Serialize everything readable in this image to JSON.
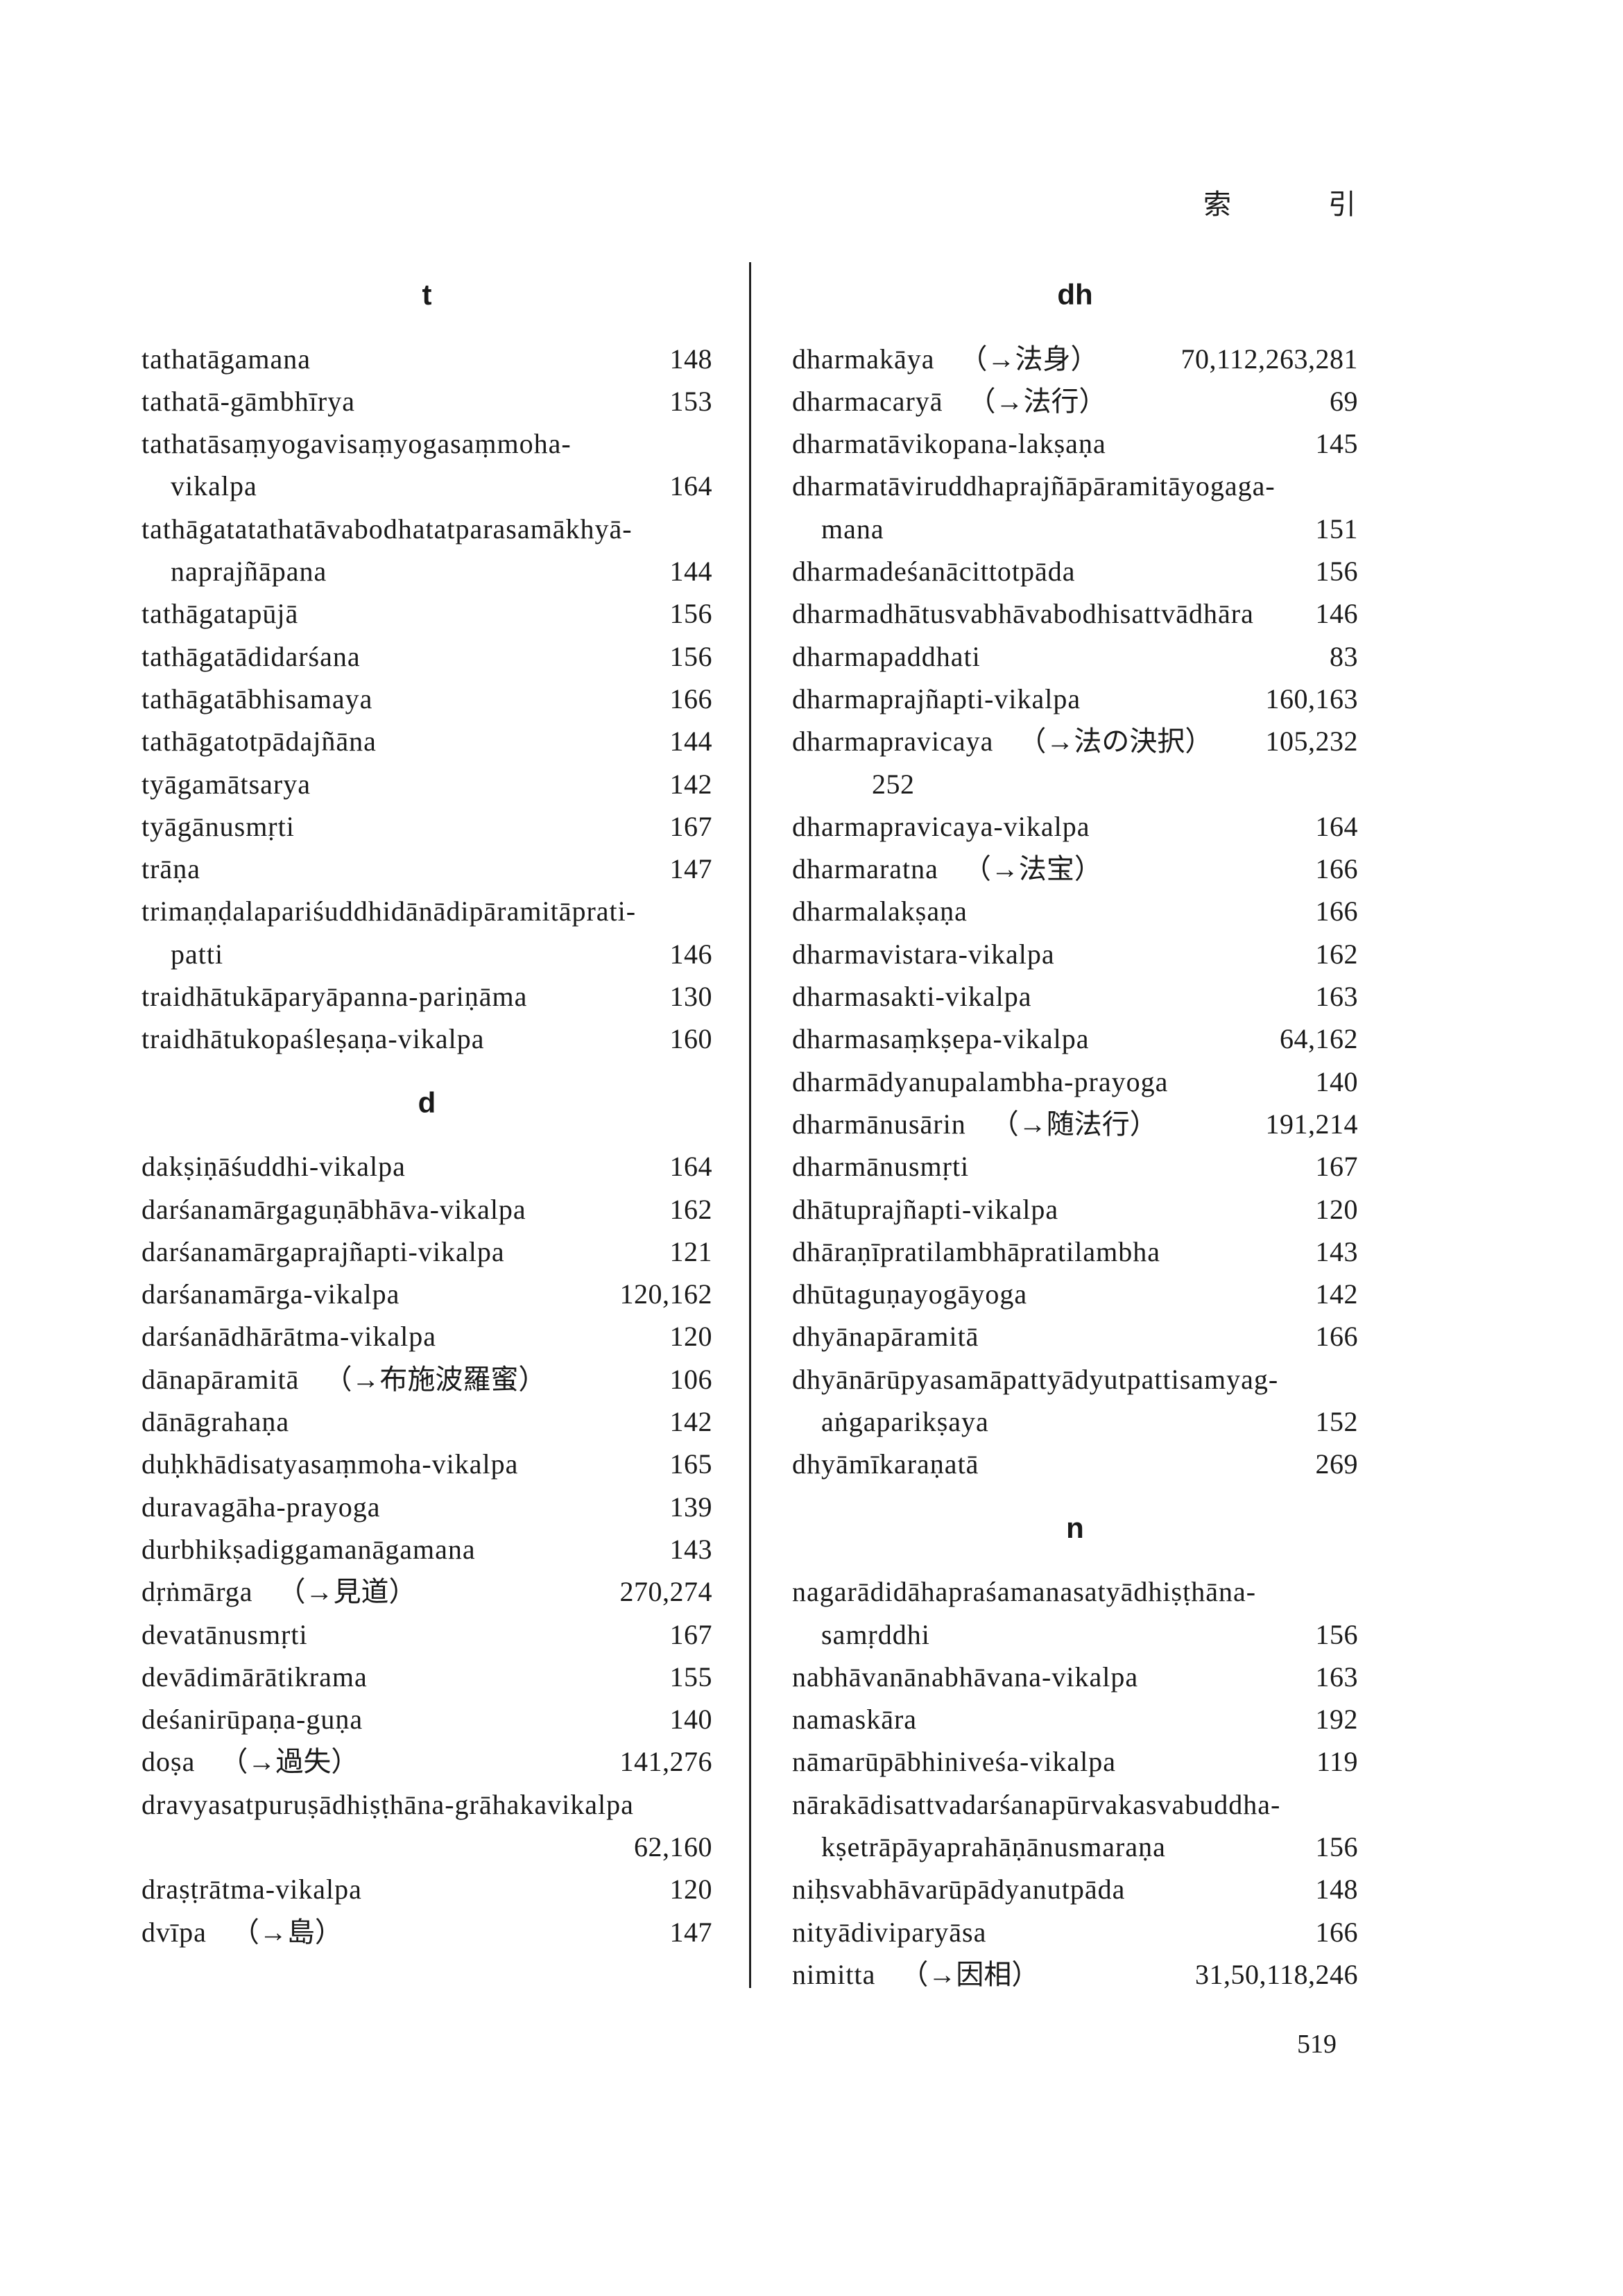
{
  "running_head": {
    "left": "索",
    "right": "引"
  },
  "folio": "519",
  "columns": [
    {
      "sections": [
        {
          "heading": "t",
          "rows": [
            {
              "term": "tathatāgamana",
              "pages": "148"
            },
            {
              "term": "tathatā-gāmbhīrya",
              "pages": "153"
            },
            {
              "term": "tathatāsaṃyogavisaṃyogasaṃmoha-",
              "pages": ""
            },
            {
              "term": "vikalpa",
              "pages": "164",
              "continuation": true
            },
            {
              "term": "tathāgatatathatāvabodhatatparasamākhyā-",
              "pages": ""
            },
            {
              "term": "naprajñāpana",
              "pages": "144",
              "continuation": true
            },
            {
              "term": "tathāgatapūjā",
              "pages": "156"
            },
            {
              "term": "tathāgatādidarśana",
              "pages": "156"
            },
            {
              "term": "tathāgatābhisamaya",
              "pages": "166"
            },
            {
              "term": "tathāgatotpādajñāna",
              "pages": "144"
            },
            {
              "term": "tyāgamātsarya",
              "pages": "142"
            },
            {
              "term": "tyāgānusmṛti",
              "pages": "167"
            },
            {
              "term": "trāṇa",
              "pages": "147"
            },
            {
              "term": "trimaṇḍalapariśuddhidānādipāramitāprati-",
              "pages": ""
            },
            {
              "term": "patti",
              "pages": "146",
              "continuation": true
            },
            {
              "term": "traidhātukāparyāpanna-pariṇāma",
              "pages": "130"
            },
            {
              "term": "traidhātukopaśleṣaṇa-vikalpa",
              "pages": "160"
            }
          ]
        },
        {
          "heading": "d",
          "rows": [
            {
              "term": "dakṣiṇāśuddhi-vikalpa",
              "pages": "164"
            },
            {
              "term": "darśanamārgaguṇābhāva-vikalpa",
              "pages": "162"
            },
            {
              "term": "darśanamārgaprajñapti-vikalpa",
              "pages": "121"
            },
            {
              "term": "darśanamārga-vikalpa",
              "pages": "120,162"
            },
            {
              "term": "darśanādhārātma-vikalpa",
              "pages": "120"
            },
            {
              "term": "dānapāramitā",
              "ref": "（→布施波羅蜜）",
              "pages": "106"
            },
            {
              "term": "dānāgrahaṇa",
              "pages": "142"
            },
            {
              "term": "duḥkhādisatyasaṃmoha-vikalpa",
              "pages": "165"
            },
            {
              "term": "duravagāha-prayoga",
              "pages": "139"
            },
            {
              "term": "durbhikṣadiggamanāgamana",
              "pages": "143"
            },
            {
              "term": "dṛṅmārga",
              "ref": "（→見道）",
              "pages": "270,274"
            },
            {
              "term": "devatānusmṛti",
              "pages": "167"
            },
            {
              "term": "devādimārātikrama",
              "pages": "155"
            },
            {
              "term": "deśanirūpaṇa-guṇa",
              "pages": "140"
            },
            {
              "term": "doṣa",
              "ref": "（→過失）",
              "pages": "141,276"
            },
            {
              "term": "dravyasatpuruṣādhiṣṭhāna-grāhakavikalpa",
              "pages": ""
            },
            {
              "term": "",
              "pages": "62,160"
            },
            {
              "term": "draṣṭrātma-vikalpa",
              "pages": "120"
            },
            {
              "term": "dvīpa",
              "ref": "（→島）",
              "pages": "147"
            }
          ]
        }
      ]
    },
    {
      "sections": [
        {
          "heading": "dh",
          "rows": [
            {
              "term": "dharmakāya",
              "ref": "（→法身）",
              "pages": "70,112,263,281"
            },
            {
              "term": "dharmacaryā",
              "ref": "（→法行）",
              "pages": "69"
            },
            {
              "term": "dharmatāvikopana-lakṣaṇa",
              "pages": "145"
            },
            {
              "term": "dharmatāviruddhaprajñāpāramitāyogaga-",
              "pages": ""
            },
            {
              "term": "mana",
              "pages": "151",
              "continuation": true
            },
            {
              "term": "dharmadeśanācittotpāda",
              "pages": "156"
            },
            {
              "term": "dharmadhātusvabhāvabodhisattvādhāra",
              "pages": "146"
            },
            {
              "term": "dharmapaddhati",
              "pages": "83"
            },
            {
              "term": "dharmaprajñapti-vikalpa",
              "pages": "160,163"
            },
            {
              "term": "dharmapravicaya",
              "ref": "（→法の決択）",
              "pages": "105,232"
            },
            {
              "term": "",
              "pages": "",
              "overflow_pages": "252"
            },
            {
              "term": "dharmapravicaya-vikalpa",
              "pages": "164"
            },
            {
              "term": "dharmaratna",
              "ref": "（→法宝）",
              "pages": "166"
            },
            {
              "term": "dharmalakṣaṇa",
              "pages": "166"
            },
            {
              "term": "dharmavistara-vikalpa",
              "pages": "162"
            },
            {
              "term": "dharmasakti-vikalpa",
              "pages": "163"
            },
            {
              "term": "dharmasaṃkṣepa-vikalpa",
              "pages": "64,162"
            },
            {
              "term": "dharmādyanupalambha-prayoga",
              "pages": "140"
            },
            {
              "term": "dharmānusārin",
              "ref": "（→随法行）",
              "pages": "191,214"
            },
            {
              "term": "dharmānusmṛti",
              "pages": "167"
            },
            {
              "term": "dhātuprajñapti-vikalpa",
              "pages": "120"
            },
            {
              "term": "dhāraṇīpratilambhāpratilambha",
              "pages": "143"
            },
            {
              "term": "dhūtaguṇayogāyoga",
              "pages": "142"
            },
            {
              "term": "dhyānapāramitā",
              "pages": "166"
            },
            {
              "term": "dhyānārūpyasamāpattyādyutpattisamyag-",
              "pages": ""
            },
            {
              "term": "aṅgaparikṣaya",
              "pages": "152",
              "continuation": true
            },
            {
              "term": "dhyāmīkaraṇatā",
              "pages": "269"
            }
          ]
        },
        {
          "heading": "n",
          "rows": [
            {
              "term": "nagarādidāhapraśamanasatyādhiṣṭhāna-",
              "pages": ""
            },
            {
              "term": "samṛddhi",
              "pages": "156",
              "continuation": true
            },
            {
              "term": "nabhāvanānabhāvana-vikalpa",
              "pages": "163"
            },
            {
              "term": "namaskāra",
              "pages": "192"
            },
            {
              "term": "nāmarūpābhiniveśa-vikalpa",
              "pages": "119"
            },
            {
              "term": "nārakādisattvadarśanapūrvakasvabuddha-",
              "pages": ""
            },
            {
              "term": "kṣetrāpāyaprahāṇānusmaraṇa",
              "pages": "156",
              "continuation": true
            },
            {
              "term": "niḥsvabhāvarūpādyanutpāda",
              "pages": "148"
            },
            {
              "term": "nityādiviparyāsa",
              "pages": "166"
            },
            {
              "term": "nimitta",
              "ref": "（→因相）",
              "pages": "31,50,118,246"
            }
          ]
        }
      ]
    }
  ]
}
